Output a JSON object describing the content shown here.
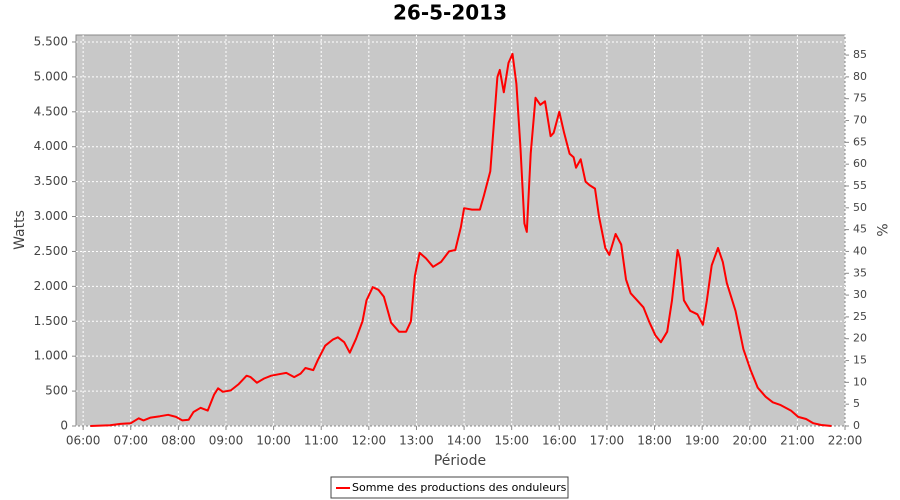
{
  "chart_data": {
    "type": "line",
    "title": "26-5-2013",
    "x_label": "Période",
    "y_label": "Watts",
    "y2_label": "%",
    "x": [
      "06:09",
      "06:34",
      "06:47",
      "07:00",
      "07:10",
      "07:16",
      "07:25",
      "07:37",
      "07:47",
      "07:57",
      "08:05",
      "08:13",
      "08:19",
      "08:28",
      "08:37",
      "08:45",
      "08:50",
      "08:56",
      "09:06",
      "09:16",
      "09:26",
      "09:31",
      "09:39",
      "09:48",
      "09:57",
      "10:06",
      "10:16",
      "10:26",
      "10:34",
      "10:40",
      "10:50",
      "10:56",
      "11:05",
      "11:15",
      "11:21",
      "11:29",
      "11:36",
      "11:44",
      "11:52",
      "11:57",
      "12:05",
      "12:12",
      "12:19",
      "12:28",
      "12:38",
      "12:47",
      "12:53",
      "12:58",
      "13:04",
      "13:12",
      "13:21",
      "13:31",
      "13:41",
      "13:49",
      "13:56",
      "14:00",
      "14:10",
      "14:20",
      "14:25",
      "14:33",
      "14:42",
      "14:45",
      "14:50",
      "14:56",
      "15:01",
      "15:06",
      "15:11",
      "15:16",
      "15:19",
      "15:24",
      "15:30",
      "15:36",
      "15:42",
      "15:49",
      "15:53",
      "16:00",
      "16:06",
      "16:13",
      "16:18",
      "16:21",
      "16:27",
      "16:33",
      "16:38",
      "16:45",
      "16:50",
      "16:58",
      "17:03",
      "17:11",
      "17:18",
      "17:24",
      "17:30",
      "17:38",
      "17:46",
      "17:53",
      "18:01",
      "18:08",
      "18:16",
      "18:22",
      "18:29",
      "18:32",
      "18:37",
      "18:45",
      "18:54",
      "19:01",
      "19:06",
      "19:12",
      "19:20",
      "19:26",
      "19:31",
      "19:42",
      "19:52",
      "20:01",
      "20:10",
      "20:20",
      "20:29",
      "20:39",
      "20:52",
      "21:01",
      "21:11",
      "21:20",
      "21:30",
      "21:43"
    ],
    "series": [
      {
        "name": "Somme des productions des onduleurs",
        "color": "#ff0000",
        "values": [
          0,
          10,
          30,
          40,
          110,
          80,
          120,
          140,
          160,
          130,
          80,
          90,
          200,
          260,
          220,
          450,
          540,
          490,
          510,
          600,
          720,
          700,
          620,
          680,
          720,
          740,
          760,
          700,
          750,
          830,
          800,
          950,
          1150,
          1240,
          1270,
          1200,
          1050,
          1250,
          1500,
          1800,
          1990,
          1950,
          1850,
          1480,
          1350,
          1350,
          1500,
          2150,
          2480,
          2400,
          2280,
          2350,
          2500,
          2520,
          2850,
          3120,
          3100,
          3100,
          3300,
          3650,
          5000,
          5100,
          4780,
          5200,
          5330,
          4900,
          4000,
          2900,
          2780,
          3900,
          4700,
          4600,
          4650,
          4150,
          4200,
          4500,
          4200,
          3900,
          3850,
          3700,
          3820,
          3500,
          3450,
          3400,
          3000,
          2550,
          2450,
          2750,
          2600,
          2100,
          1900,
          1800,
          1700,
          1500,
          1300,
          1200,
          1350,
          1800,
          2520,
          2400,
          1800,
          1650,
          1600,
          1450,
          1800,
          2300,
          2550,
          2350,
          2050,
          1650,
          1100,
          800,
          550,
          420,
          340,
          300,
          220,
          130,
          100,
          40,
          15,
          0
        ]
      }
    ],
    "xlim": [
      "05:51",
      "22:00"
    ],
    "xticks": [
      "06:00",
      "07:00",
      "08:00",
      "09:00",
      "10:00",
      "11:00",
      "12:00",
      "13:00",
      "14:00",
      "15:00",
      "16:00",
      "17:00",
      "18:00",
      "19:00",
      "20:00",
      "21:00",
      "22:00"
    ],
    "ylim": [
      0,
      5600
    ],
    "yticks": [
      0,
      500,
      {
        "value": 1000,
        "label": "1.000"
      },
      {
        "value": 1500,
        "label": "1.500"
      },
      {
        "value": 2000,
        "label": "2.000"
      },
      {
        "value": 2500,
        "label": "2.500"
      },
      {
        "value": 3000,
        "label": "3.000"
      },
      {
        "value": 3500,
        "label": "3.500"
      },
      {
        "value": 4000,
        "label": "4.000"
      },
      {
        "value": 4500,
        "label": "4.500"
      },
      {
        "value": 5000,
        "label": "5.000"
      },
      {
        "value": 5500,
        "label": "5.500"
      }
    ],
    "y2lim": [
      0,
      89.6
    ],
    "y2ticks": [
      0,
      5,
      10,
      15,
      20,
      25,
      30,
      35,
      40,
      45,
      50,
      55,
      60,
      65,
      70,
      75,
      80,
      85
    ],
    "grid": true,
    "legend": "bottom"
  }
}
